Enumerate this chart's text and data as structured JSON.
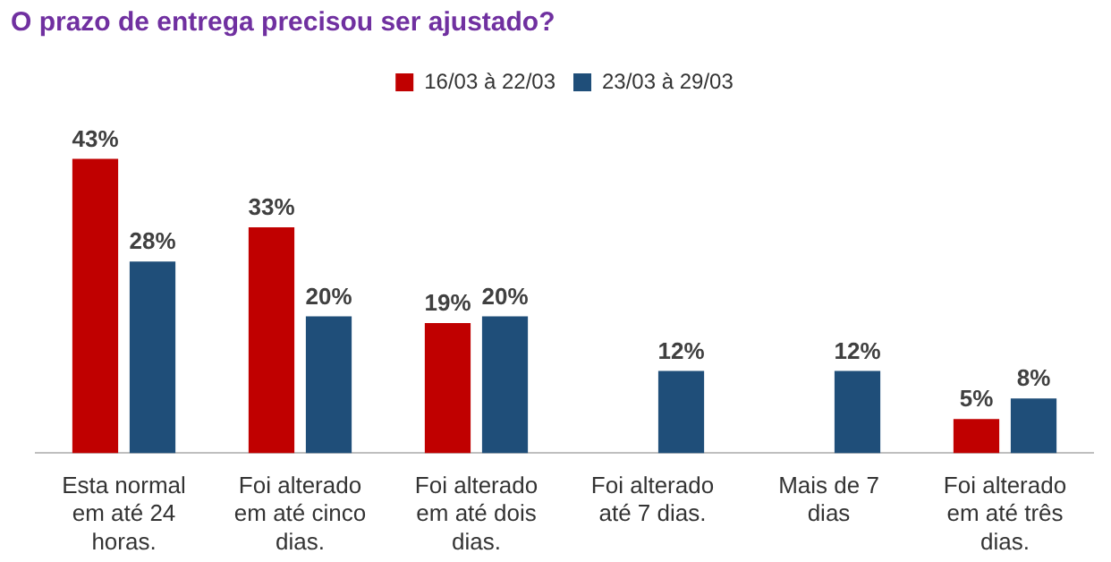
{
  "chart_data": {
    "type": "bar",
    "title": "O prazo de entrega precisou ser ajustado?",
    "categories": [
      "Esta normal em até 24 horas.",
      "Foi alterado em até cinco dias.",
      "Foi alterado em até dois dias.",
      "Foi alterado até 7 dias.",
      "Mais de 7 dias",
      "Foi alterado em até três dias."
    ],
    "series": [
      {
        "name": "16/03 à 22/03",
        "color": "#c00000",
        "values": [
          43,
          33,
          19,
          null,
          null,
          5
        ],
        "value_labels": [
          "43%",
          "33%",
          "19%",
          null,
          null,
          "5%"
        ]
      },
      {
        "name": "23/03 à 29/03",
        "color": "#1f4e79",
        "values": [
          28,
          20,
          20,
          12,
          12,
          8
        ],
        "value_labels": [
          "28%",
          "20%",
          "20%",
          "12%",
          "12%",
          "8%"
        ]
      }
    ],
    "legend": "top",
    "grid": false
  }
}
